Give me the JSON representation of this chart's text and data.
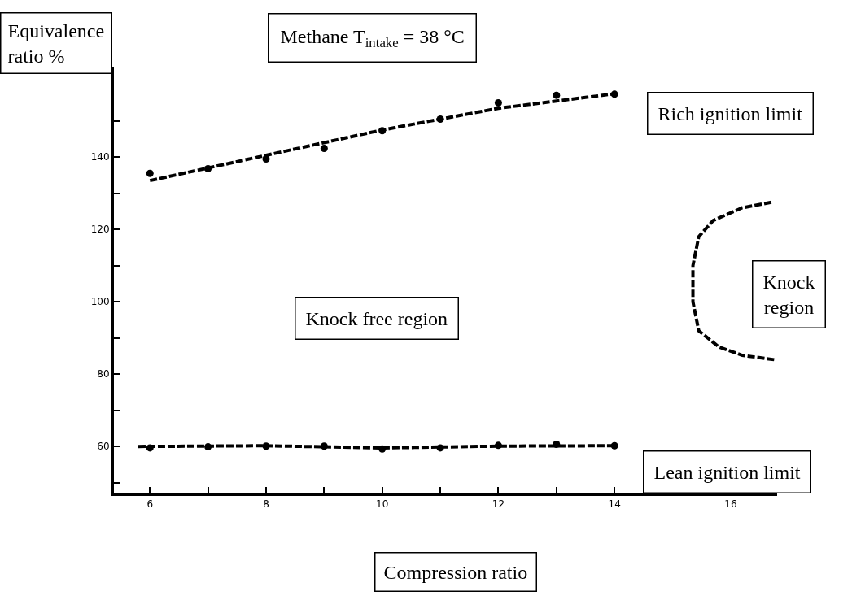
{
  "chart_data": {
    "type": "scatter",
    "title": "Methane T$_{intake}$ = 38 °C",
    "xlabel": "Compression ratio",
    "ylabel": "Equivalence ratio %",
    "x": [
      6,
      7,
      8,
      9,
      10,
      11,
      12,
      13,
      14
    ],
    "series": [
      {
        "color": "#000000",
        "marker": "circle",
        "values": [
          135.5,
          136.8,
          139.5,
          142.4,
          147.3,
          150.5,
          155.0,
          157.1,
          157.4
        ]
      },
      {
        "type": "line",
        "color": "#000000",
        "line_style": "dashed",
        "x": [
          6,
          8,
          10,
          12,
          14
        ],
        "values": [
          133.5,
          140.5,
          147.5,
          153.5,
          157.5
        ]
      },
      {
        "color": "#000000",
        "marker": "circle",
        "values": [
          59.6,
          59.9,
          60.1,
          60.1,
          59.3,
          59.6,
          60.3,
          60.6,
          60.2
        ]
      },
      {
        "type": "line",
        "color": "#000000",
        "line_style": "dashed",
        "x": [
          5.8,
          8,
          10,
          12,
          14
        ],
        "values": [
          60,
          60.2,
          59.6,
          60.1,
          60.2
        ]
      },
      {
        "type": "line",
        "color": "#000000",
        "line_style": "dashed",
        "x": [
          16.7,
          16.2,
          15.7,
          15.45,
          15.35,
          15.35,
          15.45,
          15.8,
          16.2,
          16.75
        ],
        "values": [
          127.5,
          126,
          122.5,
          118,
          110,
          100,
          92,
          87.5,
          85.2,
          84
        ]
      }
    ],
    "annotations": [
      "Rich ignition limit",
      "Knock free region",
      "Knock region",
      "Lean ignition limit"
    ],
    "xlim": [
      5.38,
      16.8
    ],
    "xticks": [
      6,
      {
        "value": 7,
        "label": null
      },
      8,
      {
        "value": 9,
        "label": null
      },
      10,
      {
        "value": 11,
        "label": null
      },
      12,
      {
        "value": 13,
        "label": null
      },
      14,
      {
        "value": 15,
        "label": null
      },
      16
    ],
    "ylim": [
      47,
      165
    ],
    "yticks": [
      {
        "value": 50,
        "label": null
      },
      60,
      {
        "value": 70,
        "label": null
      },
      80,
      {
        "value": 90,
        "label": null
      },
      100,
      {
        "value": 110,
        "label": null
      },
      120,
      {
        "value": 130,
        "label": null
      },
      140,
      {
        "value": 150,
        "label": null
      }
    ]
  }
}
